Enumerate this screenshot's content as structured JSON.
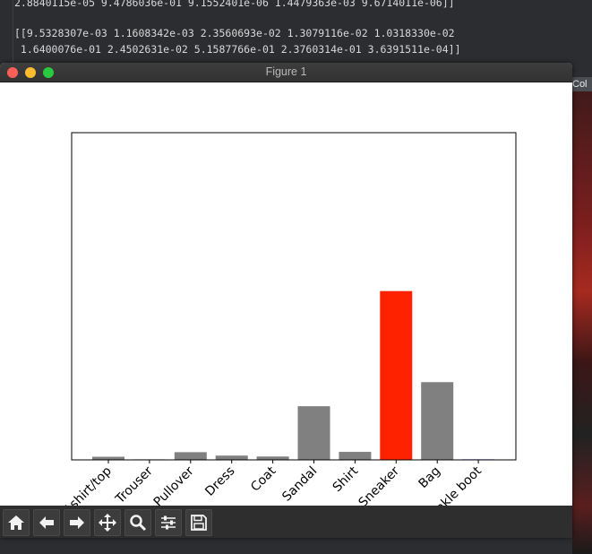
{
  "terminal": {
    "lines": [
      "2.8840115e-05 9.4786036e-01 9.1552401e-06 1.4479363e-03 9.6714011e-06]]",
      "[[9.5328307e-03 1.1608342e-03 2.3560693e-02 1.3079116e-02 1.0318330e-02",
      " 1.6400076e-01 2.4502631e-02 5.1587766e-01 2.3760314e-01 3.6391511e-04]]"
    ],
    "right_label": "Col"
  },
  "window": {
    "title": "Figure 1"
  },
  "toolbar": {
    "tools": [
      "home-icon",
      "back-arrow-icon",
      "forward-arrow-icon",
      "pan-icon",
      "zoom-icon",
      "subplots-icon",
      "save-icon"
    ]
  },
  "chart_data": {
    "type": "bar",
    "categories": [
      "T-shirt/top",
      "Trouser",
      "Pullover",
      "Dress",
      "Coat",
      "Sandal",
      "Shirt",
      "Sneaker",
      "Bag",
      "Ankle boot"
    ],
    "values": [
      0.0095328307,
      0.0011608342,
      0.023560693,
      0.013079116,
      0.01031833,
      0.16400076,
      0.024502631,
      0.51587766,
      0.23760314,
      0.00036391511
    ],
    "colors": [
      "#808080",
      "#808080",
      "#808080",
      "#808080",
      "#808080",
      "#808080",
      "#808080",
      "#ff2200",
      "#808080",
      "#0000cc"
    ],
    "highlight_index": 7,
    "ylim": [
      0,
      1
    ],
    "yticks": "none",
    "grid": false,
    "title": "",
    "xlabel": "",
    "ylabel": ""
  }
}
